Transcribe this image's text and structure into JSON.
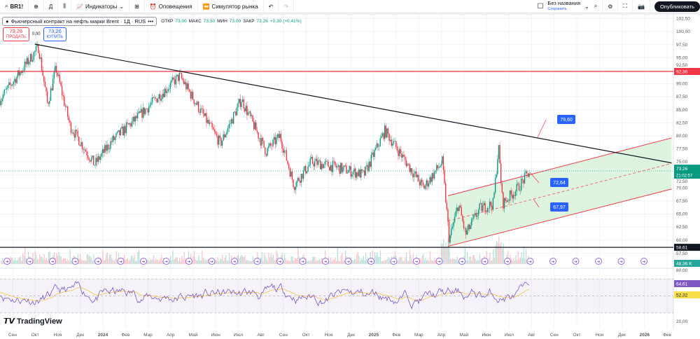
{
  "toolbar": {
    "symbol": "BR1!",
    "interval": "Д",
    "indicators": "Индикаторы",
    "alerts": "Оповещения",
    "replay": "Симулятор рынка",
    "layout_name": "Без названия",
    "layout_save": "Сохранить",
    "publish": "Опубликовать"
  },
  "legend": {
    "title": "Фьючерсный контракт на нефть марки Brent · 1Д · RUS",
    "open_label": "ОТКР",
    "open": "73,00",
    "high_label": "МАКС",
    "high": "73,50",
    "low_label": "МИН",
    "low": "73,00",
    "close_label": "ЗАКР",
    "close": "73,26",
    "change": "+0,30 (+0,41%)"
  },
  "trade": {
    "sell_price": "73,26",
    "sell_label": "ПРОДАТЬ",
    "spread": "0,00",
    "buy_price": "73,26",
    "buy_label": "КУПИТЬ"
  },
  "price_axis": [
    "102,50",
    "100,00",
    "97,50",
    "95,00",
    "92,50",
    "90,00",
    "87,50",
    "85,00",
    "82,50",
    "80,00",
    "77,50",
    "75,00",
    "72,50",
    "70,00",
    "67,50",
    "65,00",
    "62,50",
    "60,00",
    "57,50"
  ],
  "price_badges": {
    "level_high": "92,36",
    "last": "73,26",
    "countdown": "21:02:57",
    "level_low": "58,61",
    "volume": "48,36 K",
    "rsi": "64,61",
    "rsi_ma": "52,32"
  },
  "rsi_axis": [
    "80,00",
    "20,00"
  ],
  "annotations": [
    "79,60",
    "72,64",
    "67,97"
  ],
  "time_axis": [
    "Сен",
    "Окт",
    "Ноя",
    "Дек",
    "2024",
    "Фев",
    "Мар",
    "Апр",
    "Май",
    "Июн",
    "Июл",
    "Авг",
    "Сен",
    "Окт",
    "Ноя",
    "Дек",
    "2025",
    "Фев",
    "Мар",
    "Апр",
    "Май",
    "Июн",
    "Июл",
    "Авг",
    "Сен",
    "Окт",
    "Ноя",
    "Дек",
    "2026",
    "Фев"
  ],
  "brand": "TradingView",
  "colors": {
    "up": "#089981",
    "down": "#f23645",
    "level": "#f23645",
    "channel": "#c8e6c9",
    "rsi": "#7e57c2",
    "accent": "#2962ff"
  },
  "chart_data": {
    "type": "candlestick",
    "title": "Brent 1D",
    "ylim": [
      56.5,
      103
    ],
    "path": [
      [
        -0.56,
        87
      ],
      [
        1.15,
        97
      ],
      [
        1.55,
        86
      ],
      [
        1.92,
        93
      ],
      [
        2.54,
        82
      ],
      [
        3.63,
        74.5
      ],
      [
        4.4,
        79
      ],
      [
        5.65,
        84
      ],
      [
        6.33,
        87
      ],
      [
        7.41,
        91.5
      ],
      [
        8.44,
        84
      ],
      [
        9.21,
        78.5
      ],
      [
        10.14,
        87
      ],
      [
        11.23,
        77
      ],
      [
        11.85,
        80
      ],
      [
        12.47,
        70.5
      ],
      [
        13.24,
        75
      ],
      [
        14.33,
        74
      ],
      [
        15.57,
        72.5
      ],
      [
        16.5,
        81
      ],
      [
        17.43,
        75
      ],
      [
        18.21,
        70
      ],
      [
        19.04,
        75
      ],
      [
        19.35,
        60
      ],
      [
        19.76,
        67
      ],
      [
        20.07,
        61
      ],
      [
        20.69,
        66
      ],
      [
        21.3,
        67
      ],
      [
        21.53,
        78
      ],
      [
        21.71,
        67
      ],
      [
        22.39,
        70
      ],
      [
        22.92,
        73.26
      ]
    ],
    "levels": [
      92.36,
      58.61
    ],
    "trendline": [
      [
        0.98,
        97.6
      ],
      [
        29.2,
        74.8
      ]
    ],
    "channel": {
      "lower": [
        [
          19.29,
          58.8
        ],
        [
          29.2,
          69.8
        ]
      ],
      "upper": [
        [
          19.29,
          68.5
        ],
        [
          29.2,
          79.6
        ]
      ]
    }
  }
}
